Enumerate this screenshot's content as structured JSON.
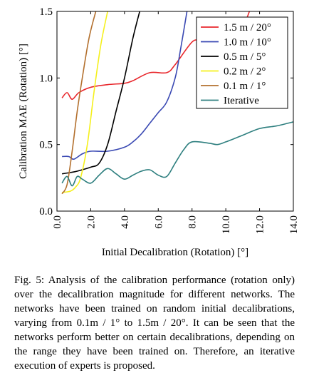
{
  "chart_data": {
    "type": "line",
    "xlabel": "Initial Decalibration (Rotation) [°]",
    "ylabel": "Calibration MAE (Rotation) [°]",
    "xlim": [
      0,
      14
    ],
    "ylim": [
      0,
      1.5
    ],
    "xticks": [
      "0.0",
      "2.0",
      "4.0",
      "6.0",
      "8.0",
      "10.0",
      "12.0",
      "14.0"
    ],
    "yticks": [
      "0.0",
      "0.5",
      "1.0",
      "1.5"
    ],
    "grid": false,
    "legend_position": "top-right",
    "series": [
      {
        "name": "1.5 m / 20°",
        "color": "#e8262b",
        "x": [
          0.3,
          0.6,
          0.9,
          1.3,
          2.0,
          3.0,
          4.0,
          4.5,
          5.5,
          6.5,
          7.0,
          8.0,
          8.5,
          9.0,
          10.0,
          10.5,
          11.0,
          11.4
        ],
        "y": [
          0.85,
          0.89,
          0.84,
          0.89,
          0.93,
          0.95,
          0.96,
          0.98,
          1.04,
          1.04,
          1.1,
          1.27,
          1.28,
          1.29,
          1.3,
          1.32,
          1.38,
          1.5
        ]
      },
      {
        "name": "1.0 m / 10°",
        "color": "#3a49b3",
        "x": [
          0.3,
          0.7,
          1.0,
          1.5,
          2.0,
          3.0,
          4.0,
          4.5,
          5.0,
          5.5,
          6.0,
          6.5,
          7.0,
          7.3,
          7.7
        ],
        "y": [
          0.41,
          0.41,
          0.39,
          0.43,
          0.45,
          0.45,
          0.48,
          0.52,
          0.58,
          0.66,
          0.74,
          0.82,
          1.0,
          1.2,
          1.5
        ]
      },
      {
        "name": "0.5 m / 5°",
        "color": "#000000",
        "x": [
          0.3,
          0.8,
          1.2,
          2.0,
          2.5,
          3.0,
          3.5,
          4.0,
          4.5,
          4.9
        ],
        "y": [
          0.28,
          0.29,
          0.3,
          0.33,
          0.36,
          0.5,
          0.75,
          1.0,
          1.3,
          1.5
        ]
      },
      {
        "name": "0.2 m / 2°",
        "color": "#f5f01c",
        "x": [
          0.3,
          0.8,
          1.1,
          1.4,
          1.8,
          2.2,
          2.6,
          3.0
        ],
        "y": [
          0.14,
          0.15,
          0.18,
          0.25,
          0.5,
          0.9,
          1.25,
          1.5
        ]
      },
      {
        "name": "0.1 m / 1°",
        "color": "#b3702e",
        "x": [
          0.3,
          0.6,
          0.9,
          1.2,
          1.5,
          1.9,
          2.3
        ],
        "y": [
          0.13,
          0.2,
          0.45,
          0.75,
          1.0,
          1.3,
          1.5
        ]
      },
      {
        "name": "Iterative",
        "color": "#2e7f7f",
        "x": [
          0.3,
          0.6,
          0.9,
          1.2,
          1.5,
          2.0,
          2.5,
          3.0,
          3.5,
          4.0,
          4.5,
          5.0,
          5.5,
          6.0,
          6.5,
          7.0,
          7.5,
          8.0,
          9.0,
          9.5,
          10.0,
          11.0,
          12.0,
          13.0,
          14.0
        ],
        "y": [
          0.21,
          0.26,
          0.19,
          0.26,
          0.24,
          0.21,
          0.27,
          0.32,
          0.28,
          0.24,
          0.27,
          0.3,
          0.31,
          0.27,
          0.26,
          0.36,
          0.46,
          0.52,
          0.51,
          0.5,
          0.52,
          0.57,
          0.62,
          0.64,
          0.67
        ]
      }
    ]
  },
  "caption": "Fig. 5: Analysis of the calibration performance (rotation only) over the decalibration magnitude for different networks. The networks have been trained on random initial decalibrations, varying from 0.1m / 1° to 1.5m / 20°. It can be seen that the networks perform better on certain decalibrations, depending on the range they have been trained on. Therefore, an iterative execution of experts is proposed."
}
